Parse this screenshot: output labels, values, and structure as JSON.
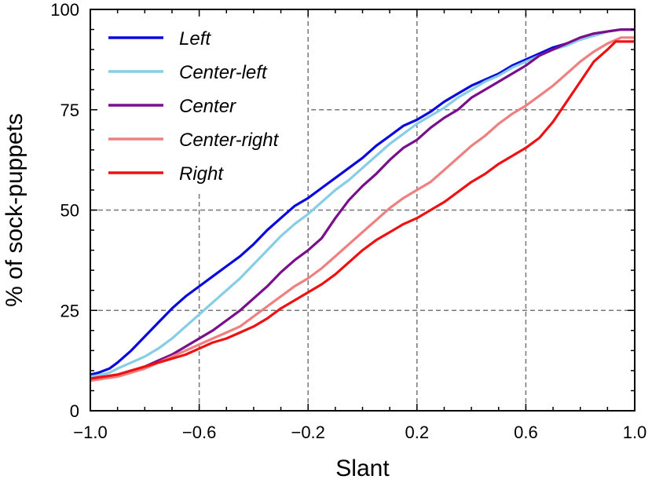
{
  "chart_data": {
    "type": "line",
    "title": "",
    "xlabel": "Slant",
    "ylabel": "% of sock-puppets",
    "xlim": [
      -1.0,
      1.0
    ],
    "ylim": [
      0,
      100
    ],
    "x_ticks": [
      {
        "value": -1.0,
        "label": "−1.0"
      },
      {
        "value": -0.6,
        "label": "−0.6"
      },
      {
        "value": -0.2,
        "label": "−0.2"
      },
      {
        "value": 0.2,
        "label": "0.2"
      },
      {
        "value": 0.6,
        "label": "0.6"
      },
      {
        "value": 1.0,
        "label": "1.0"
      }
    ],
    "y_ticks": [
      {
        "value": 0,
        "label": "0"
      },
      {
        "value": 25,
        "label": "25"
      },
      {
        "value": 50,
        "label": "50"
      },
      {
        "value": 75,
        "label": "75"
      },
      {
        "value": 100,
        "label": "100"
      }
    ],
    "x_minor_step": 0.1,
    "y_minor_step": 5,
    "grid": "dashed at labeled ticks",
    "legend_position": "top-left",
    "series": [
      {
        "name": "Left",
        "color": "#0a0adc",
        "x": [
          -1.0,
          -0.97,
          -0.93,
          -0.9,
          -0.85,
          -0.8,
          -0.75,
          -0.7,
          -0.65,
          -0.6,
          -0.55,
          -0.5,
          -0.45,
          -0.4,
          -0.35,
          -0.3,
          -0.25,
          -0.2,
          -0.15,
          -0.1,
          -0.05,
          0.0,
          0.05,
          0.1,
          0.15,
          0.2,
          0.25,
          0.3,
          0.35,
          0.4,
          0.45,
          0.5,
          0.55,
          0.6,
          0.65,
          0.7,
          0.75,
          0.8,
          0.85,
          0.9,
          0.95,
          1.0
        ],
        "y": [
          9,
          9.5,
          10.5,
          12,
          15,
          18.5,
          22,
          25.5,
          28.5,
          31,
          33.5,
          36,
          38.5,
          41.5,
          45,
          48,
          51,
          53,
          55.5,
          58,
          60.5,
          63,
          66,
          68.5,
          71,
          72.5,
          74.5,
          77,
          79,
          81,
          82.5,
          84,
          86,
          87.5,
          89,
          90.5,
          91.5,
          92.5,
          93.5,
          94.5,
          95,
          95
        ]
      },
      {
        "name": "Center-left",
        "color": "#87cde6",
        "x": [
          -1.0,
          -0.97,
          -0.93,
          -0.9,
          -0.85,
          -0.8,
          -0.75,
          -0.7,
          -0.65,
          -0.6,
          -0.55,
          -0.5,
          -0.45,
          -0.4,
          -0.35,
          -0.3,
          -0.25,
          -0.2,
          -0.15,
          -0.1,
          -0.05,
          0.0,
          0.05,
          0.1,
          0.15,
          0.2,
          0.25,
          0.3,
          0.35,
          0.4,
          0.45,
          0.5,
          0.55,
          0.6,
          0.65,
          0.7,
          0.75,
          0.8,
          0.85,
          0.9,
          0.95,
          1.0
        ],
        "y": [
          8.5,
          8.8,
          9.5,
          10.5,
          12,
          13.5,
          15.5,
          18,
          21,
          24,
          27,
          30,
          33,
          36.5,
          40,
          43.5,
          46.5,
          49,
          52,
          55,
          57.5,
          60.5,
          63.5,
          66.5,
          69,
          71.5,
          73.5,
          75.5,
          78,
          80,
          82,
          83.5,
          85.5,
          87,
          88.5,
          90,
          91,
          92.5,
          93.5,
          94.5,
          95,
          95
        ]
      },
      {
        "name": "Center",
        "color": "#7a0f8c",
        "x": [
          -1.0,
          -0.95,
          -0.9,
          -0.85,
          -0.8,
          -0.75,
          -0.7,
          -0.65,
          -0.6,
          -0.55,
          -0.5,
          -0.45,
          -0.4,
          -0.35,
          -0.3,
          -0.25,
          -0.2,
          -0.15,
          -0.1,
          -0.05,
          0.0,
          0.05,
          0.1,
          0.15,
          0.2,
          0.25,
          0.3,
          0.35,
          0.4,
          0.45,
          0.5,
          0.55,
          0.6,
          0.65,
          0.7,
          0.75,
          0.8,
          0.85,
          0.9,
          0.95,
          1.0
        ],
        "y": [
          8,
          8.5,
          9,
          10,
          11,
          12.5,
          14,
          16,
          18,
          20,
          22.5,
          25,
          28,
          31,
          34.5,
          37.5,
          40,
          43,
          48,
          52.5,
          56,
          59,
          62.5,
          65.5,
          67.5,
          70.5,
          73,
          75,
          78,
          80,
          82,
          84,
          86,
          88.5,
          90,
          91.5,
          93,
          94,
          94.5,
          95,
          95
        ]
      },
      {
        "name": "Center-right",
        "color": "#f08080",
        "x": [
          -1.0,
          -0.95,
          -0.9,
          -0.85,
          -0.8,
          -0.75,
          -0.7,
          -0.65,
          -0.6,
          -0.55,
          -0.5,
          -0.45,
          -0.4,
          -0.35,
          -0.3,
          -0.25,
          -0.2,
          -0.15,
          -0.1,
          -0.05,
          0.0,
          0.05,
          0.1,
          0.15,
          0.2,
          0.25,
          0.3,
          0.35,
          0.4,
          0.45,
          0.5,
          0.55,
          0.6,
          0.65,
          0.7,
          0.75,
          0.8,
          0.85,
          0.9,
          0.95,
          1.0
        ],
        "y": [
          7.5,
          8,
          8.5,
          9.5,
          10.5,
          12,
          13.5,
          15,
          16.5,
          18,
          19.5,
          21,
          23.5,
          26,
          28.5,
          31,
          33,
          35.5,
          38.5,
          41.5,
          44.5,
          47.5,
          50.5,
          53,
          55,
          57,
          60,
          63,
          66,
          68.5,
          71.5,
          74,
          76,
          78.5,
          81,
          84,
          87,
          89.5,
          91.5,
          93,
          93
        ]
      },
      {
        "name": "Right",
        "color": "#ee1111",
        "x": [
          -1.0,
          -0.95,
          -0.9,
          -0.85,
          -0.8,
          -0.75,
          -0.7,
          -0.65,
          -0.6,
          -0.55,
          -0.5,
          -0.45,
          -0.4,
          -0.35,
          -0.3,
          -0.25,
          -0.2,
          -0.15,
          -0.1,
          -0.05,
          0.0,
          0.05,
          0.1,
          0.15,
          0.2,
          0.25,
          0.3,
          0.35,
          0.4,
          0.45,
          0.5,
          0.55,
          0.6,
          0.65,
          0.7,
          0.75,
          0.8,
          0.85,
          0.9,
          0.93,
          0.96,
          1.0
        ],
        "y": [
          8,
          8.5,
          9,
          10,
          11,
          12,
          13,
          14,
          15.5,
          17,
          18,
          19.5,
          21,
          23,
          25.5,
          27.5,
          29.5,
          31.5,
          34,
          37,
          40,
          42.5,
          44.5,
          46.5,
          48,
          50,
          52,
          54.5,
          57,
          59,
          61.5,
          63.5,
          65.5,
          68,
          72,
          77,
          82,
          87,
          90,
          92,
          92,
          92
        ]
      }
    ]
  }
}
